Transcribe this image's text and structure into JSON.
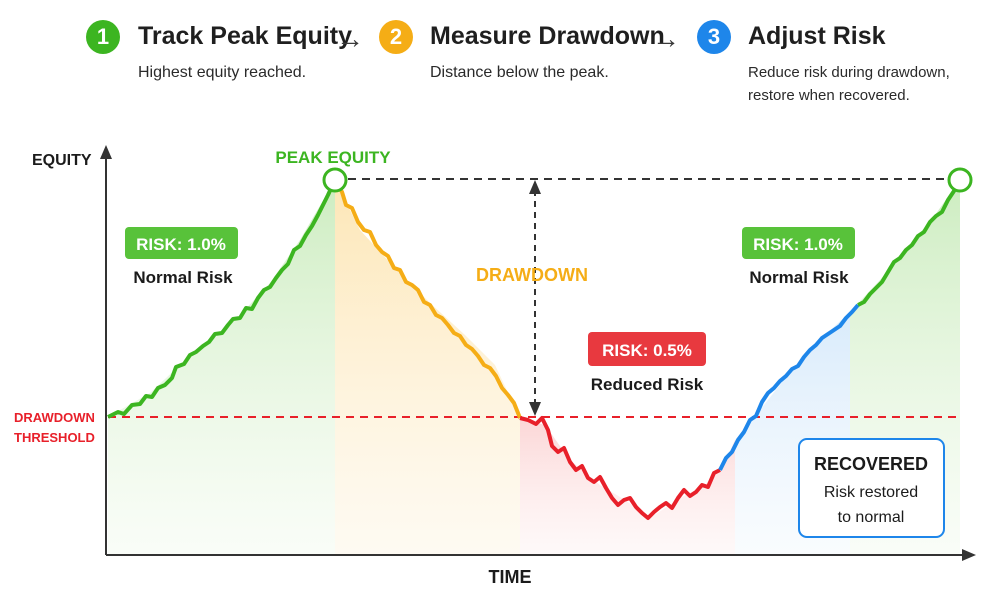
{
  "steps": [
    {
      "number": "1",
      "title": "Track Peak Equity",
      "lines": [
        "Highest equity reached."
      ],
      "color": "#3cb521"
    },
    {
      "number": "2",
      "title": "Measure Drawdown",
      "lines": [
        "Distance below the peak."
      ],
      "color": "#f5ad16"
    },
    {
      "number": "3",
      "title": "Adjust Risk",
      "lines": [
        "Reduce risk during drawdown,",
        "restore when recovered."
      ],
      "color": "#1e86ea"
    }
  ],
  "arrow_glyph": "→",
  "chart": {
    "y_axis_label": "EQUITY",
    "x_axis_label": "TIME",
    "peak_label": "PEAK EQUITY",
    "drawdown_label": "DRAWDOWN",
    "threshold_label": [
      "DRAWDOWN",
      "THRESHOLD"
    ],
    "risk_left": {
      "badge": "RISK: 1.0%",
      "caption": "Normal Risk"
    },
    "risk_mid": {
      "badge": "RISK: 0.5%",
      "caption": "Reduced Risk"
    },
    "risk_right": {
      "badge": "RISK: 1.0%",
      "caption": "Normal Risk"
    },
    "recovered": {
      "title": "RECOVERED",
      "lines": [
        "Risk restored",
        "to normal"
      ]
    }
  },
  "colors": {
    "green": "#3cb521",
    "orange": "#f5ad16",
    "red": "#e8202a",
    "blue": "#1e86ea",
    "dark": "#333333"
  }
}
